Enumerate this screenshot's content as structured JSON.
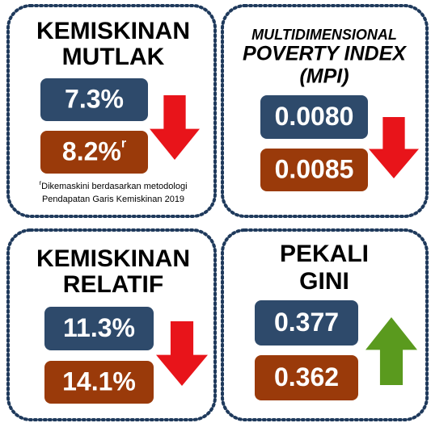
{
  "panels": [
    {
      "title": [
        "KEMISKINAN",
        "MUTLAK"
      ],
      "values": [
        {
          "text": "7.3%",
          "color": "#2e4a6b"
        },
        {
          "text": "8.2%",
          "superscript": "r",
          "color": "#9a3a0a"
        }
      ],
      "arrow": "down",
      "arrow_color": "#e8141a",
      "footnote": {
        "marker": "r",
        "lines": [
          "Dikemaskini berdasarkan metodologi",
          "Pendapatan Garis Kemiskinan 2019"
        ]
      }
    },
    {
      "title": [
        "MULTIDIMENSIONAL",
        "POVERTY INDEX",
        "(MPI)"
      ],
      "values": [
        {
          "text": "0.0080",
          "color": "#2e4a6b"
        },
        {
          "text": "0.0085",
          "color": "#9a3a0a"
        }
      ],
      "arrow": "down",
      "arrow_color": "#e8141a"
    },
    {
      "title": [
        "KEMISKINAN",
        "RELATIF"
      ],
      "values": [
        {
          "text": "11.3%",
          "color": "#2e4a6b"
        },
        {
          "text": "14.1%",
          "color": "#9a3a0a"
        }
      ],
      "arrow": "down",
      "arrow_color": "#e8141a"
    },
    {
      "title": [
        "PEKALI",
        "GINI"
      ],
      "values": [
        {
          "text": "0.377",
          "color": "#2e4a6b"
        },
        {
          "text": "0.362",
          "color": "#9a3a0a"
        }
      ],
      "arrow": "up",
      "arrow_color": "#5a9a1e"
    }
  ]
}
